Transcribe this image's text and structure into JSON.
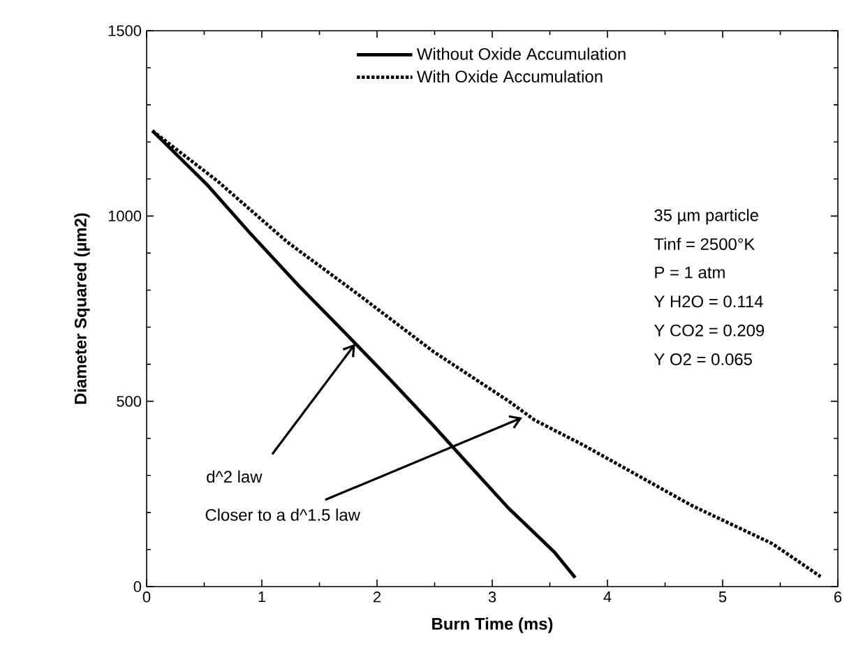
{
  "chart_data": {
    "type": "line",
    "xlabel": "Burn Time (ms)",
    "ylabel": "Diameter  Squared  (µm2)",
    "xlim": [
      0,
      6
    ],
    "ylim": [
      0,
      1500
    ],
    "xticks": [
      0,
      1,
      2,
      3,
      4,
      5,
      6
    ],
    "yticks": [
      0,
      500,
      1000,
      1500
    ],
    "legend": "top",
    "marker": "none",
    "series": [
      {
        "name": "Without Oxide Accumulation",
        "color": "#000000",
        "line_style": "solid",
        "x": [
          0.05,
          0.52,
          0.9,
          1.32,
          1.74,
          2.11,
          2.49,
          2.77,
          3.14,
          3.54,
          3.72
        ],
        "values": [
          1230,
          1086,
          953,
          812,
          679,
          560,
          434,
          338,
          212,
          93,
          24
        ]
      },
      {
        "name": "With Oxide Accumulation",
        "color": "#000000",
        "line_style": "dotted",
        "x": [
          0.05,
          0.62,
          1.22,
          1.83,
          2.49,
          3.14,
          3.37,
          3.79,
          4.73,
          5.43,
          5.85
        ],
        "values": [
          1230,
          1093,
          930,
          790,
          634,
          501,
          449,
          382,
          219,
          116,
          27
        ]
      }
    ],
    "annotations": [
      {
        "text": "d^2 law",
        "x": 1.81,
        "y": 655
      },
      {
        "text": "Closer to a d^1.5 law",
        "x": 3.26,
        "y": 456
      },
      "35 µm particle",
      "Tinf = 2500°K",
      "P = 1 atm",
      "Y H2O = 0.114",
      "Y CO2 = 0.209",
      "Y O2 = 0.065"
    ]
  }
}
